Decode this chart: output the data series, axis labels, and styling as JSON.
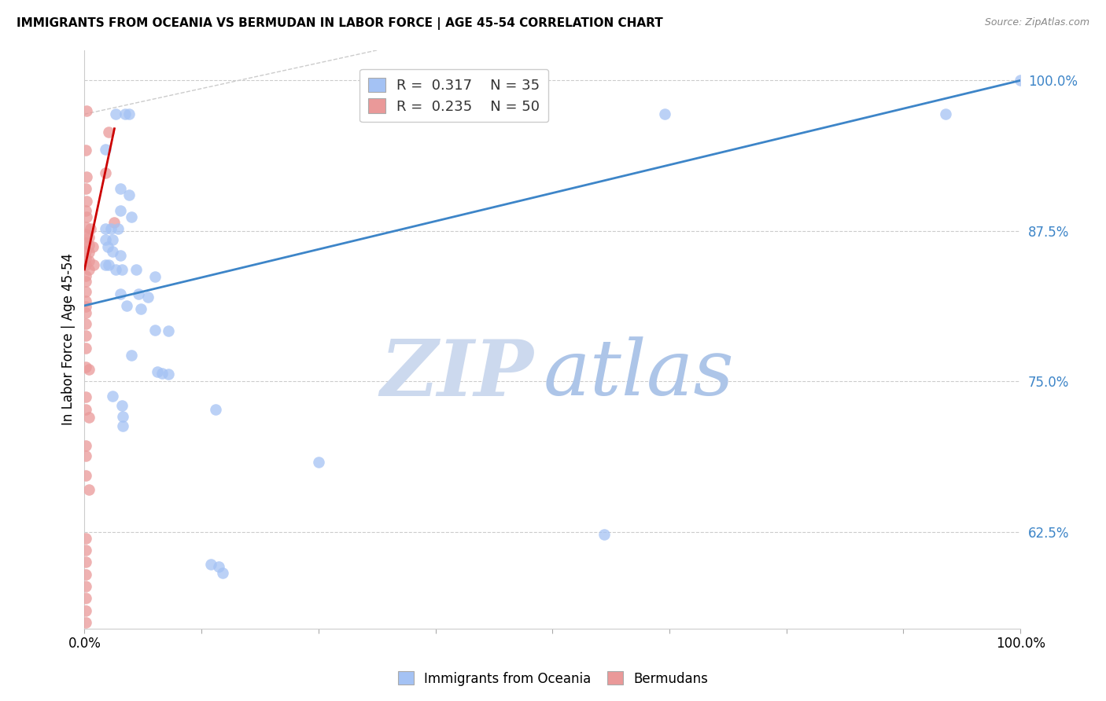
{
  "title": "IMMIGRANTS FROM OCEANIA VS BERMUDAN IN LABOR FORCE | AGE 45-54 CORRELATION CHART",
  "source": "Source: ZipAtlas.com",
  "ylabel": "In Labor Force | Age 45-54",
  "xlim": [
    0.0,
    1.0
  ],
  "ylim": [
    0.545,
    1.025
  ],
  "y_ticks": [
    0.625,
    0.75,
    0.875,
    1.0
  ],
  "blue_color": "#a4c2f4",
  "pink_color": "#ea9999",
  "blue_line_color": "#3d85c8",
  "pink_line_color": "#cc0000",
  "oceania_points": [
    [
      0.033,
      0.972
    ],
    [
      0.043,
      0.972
    ],
    [
      0.048,
      0.972
    ],
    [
      0.022,
      0.943
    ],
    [
      0.038,
      0.91
    ],
    [
      0.048,
      0.905
    ],
    [
      0.038,
      0.892
    ],
    [
      0.05,
      0.887
    ],
    [
      0.022,
      0.877
    ],
    [
      0.028,
      0.877
    ],
    [
      0.036,
      0.877
    ],
    [
      0.022,
      0.868
    ],
    [
      0.03,
      0.868
    ],
    [
      0.025,
      0.862
    ],
    [
      0.03,
      0.858
    ],
    [
      0.038,
      0.855
    ],
    [
      0.022,
      0.847
    ],
    [
      0.026,
      0.847
    ],
    [
      0.033,
      0.843
    ],
    [
      0.04,
      0.843
    ],
    [
      0.055,
      0.843
    ],
    [
      0.075,
      0.837
    ],
    [
      0.038,
      0.823
    ],
    [
      0.058,
      0.823
    ],
    [
      0.068,
      0.82
    ],
    [
      0.045,
      0.813
    ],
    [
      0.06,
      0.81
    ],
    [
      0.075,
      0.793
    ],
    [
      0.09,
      0.792
    ],
    [
      0.05,
      0.772
    ],
    [
      0.078,
      0.758
    ],
    [
      0.083,
      0.757
    ],
    [
      0.09,
      0.756
    ],
    [
      0.03,
      0.738
    ],
    [
      0.04,
      0.73
    ],
    [
      0.041,
      0.721
    ],
    [
      0.041,
      0.713
    ],
    [
      0.14,
      0.727
    ],
    [
      0.135,
      0.598
    ],
    [
      0.143,
      0.596
    ],
    [
      0.148,
      0.591
    ],
    [
      0.25,
      0.683
    ],
    [
      0.555,
      0.623
    ],
    [
      0.62,
      0.972
    ],
    [
      0.92,
      0.972
    ],
    [
      1.0,
      1.0
    ]
  ],
  "bermuda_points": [
    [
      0.002,
      0.975
    ],
    [
      0.001,
      0.942
    ],
    [
      0.002,
      0.92
    ],
    [
      0.001,
      0.91
    ],
    [
      0.002,
      0.9
    ],
    [
      0.001,
      0.892
    ],
    [
      0.002,
      0.887
    ],
    [
      0.001,
      0.878
    ],
    [
      0.006,
      0.877
    ],
    [
      0.001,
      0.872
    ],
    [
      0.005,
      0.87
    ],
    [
      0.001,
      0.865
    ],
    [
      0.005,
      0.863
    ],
    [
      0.009,
      0.862
    ],
    [
      0.001,
      0.858
    ],
    [
      0.005,
      0.857
    ],
    [
      0.001,
      0.852
    ],
    [
      0.005,
      0.85
    ],
    [
      0.001,
      0.847
    ],
    [
      0.005,
      0.843
    ],
    [
      0.001,
      0.838
    ],
    [
      0.001,
      0.833
    ],
    [
      0.001,
      0.825
    ],
    [
      0.001,
      0.817
    ],
    [
      0.001,
      0.812
    ],
    [
      0.001,
      0.807
    ],
    [
      0.001,
      0.798
    ],
    [
      0.001,
      0.788
    ],
    [
      0.001,
      0.778
    ],
    [
      0.001,
      0.762
    ],
    [
      0.005,
      0.76
    ],
    [
      0.001,
      0.737
    ],
    [
      0.001,
      0.727
    ],
    [
      0.005,
      0.72
    ],
    [
      0.001,
      0.697
    ],
    [
      0.001,
      0.688
    ],
    [
      0.001,
      0.672
    ],
    [
      0.005,
      0.66
    ],
    [
      0.01,
      0.847
    ],
    [
      0.022,
      0.923
    ],
    [
      0.026,
      0.957
    ],
    [
      0.032,
      0.882
    ],
    [
      0.001,
      0.62
    ],
    [
      0.001,
      0.61
    ],
    [
      0.001,
      0.6
    ],
    [
      0.001,
      0.59
    ],
    [
      0.001,
      0.58
    ],
    [
      0.001,
      0.57
    ],
    [
      0.001,
      0.56
    ],
    [
      0.001,
      0.55
    ]
  ],
  "blue_regression": [
    0.0,
    1.0,
    0.813,
    1.0
  ],
  "pink_regression": [
    0.0,
    0.032,
    0.843,
    0.96
  ],
  "diagonal": [
    0.0,
    0.4,
    0.972,
    1.04
  ]
}
